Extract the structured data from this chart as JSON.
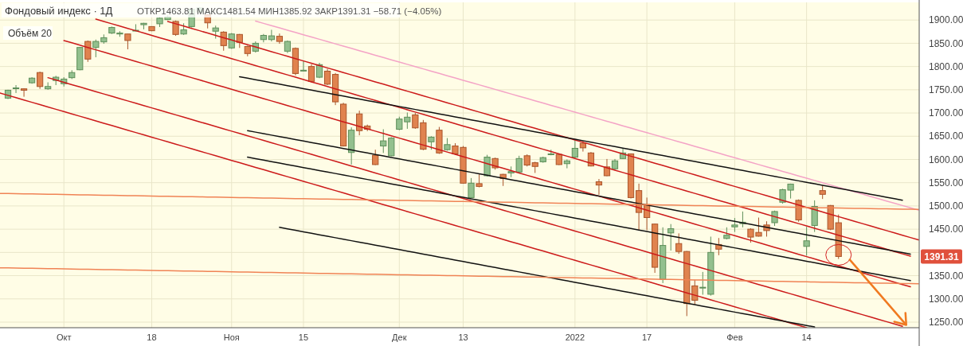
{
  "chart_data": {
    "type": "candlestick",
    "title": "Фондовый индекс · 1Д",
    "subtitle": "ОТКР1463.81 МАКС1481.54 МИН1385.92 ЗАКР1391.31 −58.71 (−4.05%)",
    "annotations": [
      "Объём 20",
      "1391.31"
    ],
    "categories": [
      null,
      null,
      null,
      null,
      null,
      null,
      null,
      null,
      "Окт",
      null,
      null,
      null,
      null,
      null,
      null,
      null,
      null,
      null,
      null,
      "18",
      null,
      null,
      null,
      null,
      null,
      null,
      null,
      null,
      null,
      "Ноя",
      null,
      null,
      null,
      null,
      null,
      null,
      null,
      null,
      "15",
      null,
      null,
      null,
      null,
      null,
      null,
      null,
      null,
      null,
      null,
      null,
      "Дек",
      null,
      null,
      null,
      null,
      null,
      null,
      null,
      "13",
      null,
      null,
      null,
      null,
      null,
      null,
      null,
      null,
      null,
      null,
      null,
      null,
      null,
      "2022",
      null,
      null,
      null,
      null,
      null,
      null,
      null,
      null,
      "17",
      null,
      null,
      null,
      null,
      null,
      null,
      null,
      null,
      null,
      null,
      "Фев",
      null,
      null,
      null,
      null,
      null,
      null,
      null,
      null,
      "14",
      null,
      null,
      null,
      null,
      null,
      null,
      null,
      null,
      null,
      null,
      null,
      null,
      null,
      null
    ],
    "ohlc": [
      null,
      [
        1732,
        1750,
        1730,
        1749
      ],
      [
        1754,
        1760,
        1743,
        1754
      ],
      [
        1752,
        1753,
        1735,
        1749
      ],
      [
        1765,
        1777,
        1763,
        1775
      ],
      [
        1787,
        1789,
        1752,
        1757
      ],
      [
        1752,
        1766,
        1750,
        1757
      ],
      [
        1770,
        1780,
        1760,
        1777
      ],
      [
        1763,
        1777,
        1757,
        1773
      ],
      [
        1776,
        1792,
        1773,
        1787
      ],
      [
        1793,
        1842,
        1792,
        1841
      ],
      [
        1854,
        1856,
        1810,
        1816
      ],
      [
        1841,
        1858,
        1820,
        1854
      ],
      [
        1853,
        1869,
        1849,
        1862
      ],
      [
        1872,
        1886,
        1870,
        1884
      ],
      [
        1870,
        1876,
        1864,
        1872
      ],
      [
        1870,
        1870,
        1837,
        1856
      ],
      [
        1877,
        1891,
        1876,
        1878
      ],
      [
        1890,
        1894,
        1880,
        1893
      ],
      [
        1886,
        1886,
        1876,
        1877
      ],
      [
        1892,
        1906,
        1885,
        1904
      ],
      [
        1901,
        1910,
        1900,
        1907
      ],
      [
        1897,
        1899,
        1866,
        1869
      ],
      [
        1870,
        1893,
        1868,
        1879
      ],
      [
        1886,
        1925,
        1884,
        1923
      ],
      [
        1917,
        1928,
        1915,
        1926
      ],
      [
        1911,
        1913,
        1882,
        1894
      ],
      [
        1876,
        1888,
        1860,
        1883
      ],
      [
        1874,
        1876,
        1834,
        1845
      ],
      [
        1840,
        1872,
        1838,
        1870
      ],
      [
        1869,
        1870,
        1840,
        1852
      ],
      [
        1843,
        1845,
        1822,
        1828
      ],
      [
        1833,
        1854,
        1830,
        1850
      ],
      [
        1858,
        1870,
        1852,
        1867
      ],
      [
        1858,
        1879,
        1854,
        1866
      ],
      [
        1865,
        1871,
        1849,
        1854
      ],
      [
        1833,
        1856,
        1829,
        1854
      ],
      [
        1839,
        1841,
        1781,
        1785
      ],
      [
        1792,
        1813,
        1790,
        1792
      ],
      [
        1800,
        1805,
        1766,
        1768
      ],
      [
        1777,
        1808,
        1775,
        1804
      ],
      [
        1790,
        1795,
        1760,
        1762
      ],
      [
        1783,
        1786,
        1717,
        1724
      ],
      [
        1719,
        1722,
        1628,
        1629
      ],
      [
        1615,
        1669,
        1589,
        1663
      ],
      [
        1698,
        1705,
        1652,
        1662
      ],
      [
        1672,
        1675,
        1661,
        1665
      ],
      [
        1609,
        1621,
        1588,
        1589
      ],
      [
        1629,
        1665,
        1614,
        1640
      ],
      [
        1608,
        1648,
        1607,
        1646
      ],
      [
        1665,
        1692,
        1663,
        1687
      ],
      [
        1681,
        1701,
        1666,
        1691
      ],
      [
        1696,
        1700,
        1666,
        1668
      ],
      [
        1679,
        1685,
        1620,
        1622
      ],
      [
        1638,
        1650,
        1621,
        1648
      ],
      [
        1663,
        1670,
        1612,
        1614
      ],
      [
        1621,
        1646,
        1619,
        1632
      ],
      [
        1629,
        1635,
        1610,
        1612
      ],
      [
        1626,
        1629,
        1548,
        1549
      ],
      [
        1518,
        1560,
        1517,
        1549
      ],
      [
        1548,
        1568,
        1540,
        1542
      ],
      [
        1565,
        1610,
        1563,
        1605
      ],
      [
        1602,
        1604,
        1578,
        1582
      ],
      [
        1568,
        1569,
        1543,
        1559
      ],
      [
        1571,
        1585,
        1562,
        1574
      ],
      [
        1573,
        1608,
        1572,
        1602
      ],
      [
        1608,
        1611,
        1585,
        1588
      ],
      [
        1593,
        1595,
        1571,
        1585
      ],
      [
        1595,
        1606,
        1593,
        1604
      ],
      [
        1612,
        1621,
        1609,
        1612
      ],
      [
        1611,
        1613,
        1588,
        1589
      ],
      [
        1591,
        1600,
        1581,
        1597
      ],
      [
        1605,
        1642,
        1602,
        1624
      ],
      [
        1635,
        1640,
        1617,
        1625
      ],
      [
        1614,
        1616,
        1585,
        1586
      ],
      [
        1552,
        1558,
        1524,
        1545
      ],
      [
        1584,
        1601,
        1564,
        1565
      ],
      [
        1580,
        1601,
        1578,
        1597
      ],
      [
        1602,
        1624,
        1601,
        1614
      ],
      [
        1612,
        1613,
        1516,
        1518
      ],
      [
        1533,
        1548,
        1447,
        1486
      ],
      [
        1503,
        1518,
        1448,
        1475
      ],
      [
        1461,
        1462,
        1356,
        1368
      ],
      [
        1342,
        1454,
        1334,
        1415
      ],
      [
        1442,
        1461,
        1404,
        1451
      ],
      [
        1419,
        1441,
        1397,
        1402
      ],
      [
        1402,
        1403,
        1263,
        1290
      ],
      [
        1328,
        1341,
        1288,
        1297
      ],
      [
        1324,
        1358,
        1309,
        1325
      ],
      [
        1310,
        1434,
        1307,
        1400
      ],
      [
        1417,
        1431,
        1394,
        1407
      ],
      [
        1430,
        1454,
        1428,
        1437
      ],
      [
        1455,
        1474,
        1444,
        1459
      ],
      [
        1462,
        1488,
        1454,
        1465
      ],
      [
        1450,
        1452,
        1421,
        1433
      ],
      [
        1443,
        1475,
        1434,
        1435
      ],
      [
        1459,
        1467,
        1434,
        1447
      ],
      [
        1464,
        1490,
        1457,
        1488
      ],
      [
        1508,
        1537,
        1505,
        1535
      ],
      [
        1534,
        1548,
        1516,
        1547
      ],
      [
        1512,
        1514,
        1466,
        1470
      ],
      [
        1413,
        1455,
        1393,
        1425
      ],
      [
        1458,
        1512,
        1444,
        1499
      ],
      [
        1533,
        1544,
        1515,
        1525
      ],
      [
        1501,
        1502,
        1448,
        1450
      ],
      [
        1463.81,
        1481.54,
        1385.92,
        1391.31
      ],
      null,
      null,
      null,
      null,
      null,
      null,
      null,
      null,
      null,
      null
    ],
    "series": [
      {
        "type": "line",
        "color": "#f4a3c6",
        "values": [
          null,
          null,
          null,
          null,
          null,
          null,
          null,
          null,
          null,
          null,
          null,
          null,
          null,
          null,
          null,
          null,
          null,
          null,
          null,
          null,
          null,
          null,
          null,
          null,
          null,
          null,
          null,
          null,
          null,
          null,
          null,
          null,
          1897.8,
          1892.9,
          1888,
          1883.1,
          1878.2,
          1873.3,
          1868.4,
          1863.5,
          1858.6,
          1853.7,
          1848.8,
          1843.9,
          1839,
          1834.1,
          1829.2,
          1824.3,
          1819.4,
          1814.5,
          1809.6,
          1804.7,
          1799.8,
          1794.9,
          1790,
          1785.1,
          1780.2,
          1775.3,
          1770.4,
          1765.5,
          1760.6,
          1755.7,
          1750.8,
          1745.9,
          1741,
          1736.1,
          1731.2,
          1726.3,
          1721.4,
          1716.5,
          1711.6,
          1706.7,
          1701.8,
          1696.9,
          1692,
          1687.1,
          1682.2,
          1677.3,
          1672.4,
          1667.5,
          1662.6,
          1657.7,
          1652.8,
          1647.9,
          1643,
          1638.1,
          1633.2,
          1628.3,
          1623.4,
          1618.5,
          1613.6,
          1608.7,
          1603.8,
          1598.9,
          1594,
          1589.1,
          1584.2,
          1579.3,
          1574.4,
          1569.5,
          1564.6,
          1559.7,
          1554.8,
          1549.9,
          1545,
          1540.1,
          1535.2,
          1530.3,
          1525.4,
          1520.5,
          1515.6,
          1510.7,
          1505.8,
          1500.9,
          1496,
          1491.1
        ]
      },
      {
        "type": "line",
        "color": "#cc1a1a",
        "values": [
          null,
          null,
          null,
          null,
          null,
          null,
          null,
          null,
          null,
          null,
          null,
          null,
          null,
          null,
          null,
          null,
          null,
          null,
          null,
          null,
          null,
          1897,
          1892,
          1887,
          1882,
          1877,
          1872,
          1867,
          1862,
          1857,
          1852,
          1847,
          1842,
          1837,
          1832,
          1827,
          1822,
          1817,
          1812,
          1807,
          1802,
          1797,
          1792,
          1787,
          1782,
          1777,
          1772,
          1767,
          1762,
          1757,
          1752,
          1747,
          1742,
          1737,
          1732,
          1727,
          1722,
          1717,
          1712,
          1707,
          1702,
          1697,
          1692,
          1687,
          1682,
          1677,
          1672,
          1667,
          1662,
          1657,
          1652,
          1647,
          1642,
          1637,
          1632,
          1627,
          1622,
          1617,
          1612,
          1607,
          1602,
          1597,
          1592,
          1587,
          1582,
          1577,
          1572,
          1567,
          1562,
          1557,
          1552,
          1547,
          1542,
          1537,
          1532,
          1527,
          1522,
          1517,
          1512,
          1507,
          1502,
          1497,
          1492,
          1487,
          1482,
          1477,
          1472,
          1467,
          1462,
          1457,
          1452,
          1447,
          1442,
          1437,
          1432,
          1427
        ]
      },
      {
        "type": "line",
        "color": "#cc1a1a",
        "values": [
          null,
          null,
          null,
          null,
          null,
          null,
          null,
          null,
          null,
          null,
          null,
          null,
          1902,
          1897,
          1892,
          1887,
          1882,
          1877,
          1872,
          1867,
          1862,
          1857,
          1852,
          1847,
          1842,
          1837,
          1832,
          1827,
          1822,
          1817,
          1812,
          1807,
          1802,
          1797,
          1792,
          1787,
          1782,
          1777,
          1772,
          1767,
          1762,
          1757,
          1752,
          1747,
          1742,
          1737,
          1732,
          1727,
          1722,
          1717,
          1712,
          1707,
          1702,
          1697,
          1692,
          1687,
          1682,
          1677,
          1672,
          1667,
          1662,
          1657,
          1652,
          1647,
          1642,
          1637,
          1632,
          1627,
          1622,
          1617,
          1612,
          1607,
          1602,
          1597,
          1592,
          1587,
          1582,
          1577,
          1572,
          1567,
          1562,
          1557,
          1552,
          1547,
          1542,
          1537,
          1532,
          1527,
          1522,
          1517,
          1512,
          1507,
          1502,
          1497,
          1492,
          1487,
          1482,
          1477,
          1472,
          1467,
          1462,
          1457,
          1452,
          1447,
          1442,
          1437,
          1432,
          1427,
          1422,
          1417,
          1412,
          1407,
          1402,
          1397,
          1392,
          null
        ]
      },
      {
        "type": "line",
        "color": "#cc1a1a",
        "values": [
          null,
          null,
          null,
          null,
          null,
          null,
          null,
          null,
          1856,
          1851,
          1846,
          1841,
          1836,
          1831,
          1826,
          1821,
          1816,
          1811,
          1806,
          1801,
          1796,
          1791,
          1786,
          1781,
          1776,
          1771,
          1766,
          1761,
          1756,
          1751,
          1746,
          1741,
          1736,
          1731,
          1726,
          1721,
          1716,
          1711,
          1706,
          1701,
          1696,
          1691,
          1686,
          1681,
          1676,
          1671,
          1666,
          1661,
          1656,
          1651,
          1646,
          1641,
          1636,
          1631,
          1626,
          1621,
          1616,
          1611,
          1606,
          1601,
          1596,
          1591,
          1586,
          1581,
          1576,
          1571,
          1566,
          1561,
          1556,
          1551,
          1546,
          1541,
          1536,
          1531,
          1526,
          1521,
          1516,
          1511,
          1506,
          1501,
          1496,
          1491,
          1486,
          1481,
          1476,
          1471,
          1466,
          1461,
          1456,
          1451,
          1446,
          1441,
          1436,
          1431,
          1426,
          1421,
          1416,
          1411,
          1406,
          1401,
          1396,
          1391,
          1386,
          1381,
          1376,
          1371,
          1366,
          1361,
          1356,
          1351,
          1346,
          1341,
          1336,
          1331,
          1326,
          null
        ]
      },
      {
        "type": "line",
        "color": "#cc1a1a",
        "values": [
          null,
          null,
          null,
          null,
          null,
          null,
          1776,
          1771,
          1766,
          1761,
          1756,
          1751,
          1746,
          1741,
          1736,
          1731,
          1726,
          1721,
          1716,
          1711,
          1706,
          1701,
          1696,
          1691,
          1686,
          1681,
          1676,
          1671,
          1666,
          1661,
          1656,
          1651,
          1646,
          1641,
          1636,
          1631,
          1626,
          1621,
          1616,
          1611,
          1606,
          1601,
          1596,
          1591,
          1586,
          1581,
          1576,
          1571,
          1566,
          1561,
          1556,
          1551,
          1546,
          1541,
          1536,
          1531,
          1526,
          1521,
          1516,
          1511,
          1506,
          1501,
          1496,
          1491,
          1486,
          1481,
          1476,
          1471,
          1466,
          1461,
          1456,
          1451,
          1446,
          1441,
          1436,
          1431,
          1426,
          1421,
          1416,
          1411,
          1406,
          1401,
          1396,
          1391,
          1386,
          1381,
          1376,
          1371,
          1366,
          1361,
          1356,
          1351,
          1346,
          1341,
          1336,
          1331,
          1326,
          1321,
          1316,
          1311,
          1306,
          1301,
          1296,
          1291,
          1286,
          1281,
          1276,
          1271,
          1266,
          1261,
          1256,
          1251,
          1246,
          1241,
          null,
          null
        ]
      },
      {
        "type": "line",
        "color": "#cc1a1a",
        "values": [
          1743,
          1738,
          1733,
          1728,
          1723,
          1718,
          1713,
          1708,
          1703,
          1698,
          1693,
          1688,
          1683,
          1678,
          1673,
          1668,
          1663,
          1658,
          1653,
          1648,
          1643,
          1638,
          1633,
          1628,
          1623,
          1618,
          1613,
          1608,
          1603,
          1598,
          1593,
          1588,
          1583,
          1578,
          1573,
          1568,
          1563,
          1558,
          1553,
          1548,
          1543,
          1538,
          1533,
          1528,
          1523,
          1518,
          1513,
          1508,
          1503,
          1498,
          1493,
          1488,
          1483,
          1478,
          1473,
          1468,
          1463,
          1458,
          1453,
          1448,
          1443,
          1438,
          1433,
          1428,
          1423,
          1418,
          1413,
          1408,
          1403,
          1398,
          1393,
          1388,
          1383,
          1378,
          1373,
          1368,
          1363,
          1358,
          1353,
          1348,
          1343,
          1338,
          1333,
          1328,
          1323,
          1318,
          1313,
          1308,
          1303,
          1298,
          1293,
          1288,
          1283,
          1278,
          1273,
          1268,
          1263,
          1258,
          1253,
          1248,
          1243,
          1238,
          null,
          null,
          null,
          null,
          null,
          null,
          null,
          null,
          null,
          null,
          null,
          null,
          null,
          null
        ]
      },
      {
        "type": "line",
        "color": "#111111",
        "values": [
          null,
          null,
          null,
          null,
          null,
          null,
          null,
          null,
          null,
          null,
          null,
          null,
          null,
          null,
          null,
          null,
          null,
          null,
          null,
          null,
          null,
          null,
          null,
          null,
          null,
          null,
          null,
          null,
          null,
          null,
          1778,
          1774.8,
          1771.6,
          1768.4,
          1765.2,
          1762,
          1758.8,
          1755.6,
          1752.4,
          1749.2,
          1746,
          1742.8,
          1739.6,
          1736.4,
          1733.2,
          1730,
          1726.8,
          1723.6,
          1720.4,
          1717.2,
          1714,
          1710.8,
          1707.6,
          1704.4,
          1701.2,
          1698,
          1694.8,
          1691.6,
          1688.4,
          1685.2,
          1682,
          1678.8,
          1675.6,
          1672.4,
          1669.2,
          1666,
          1662.8,
          1659.6,
          1656.4,
          1653.2,
          1650,
          1646.8,
          1643.6,
          1640.4,
          1637.2,
          1634,
          1630.8,
          1627.6,
          1624.4,
          1621.2,
          1618,
          1614.8,
          1611.6,
          1608.4,
          1605.2,
          1602,
          1598.8,
          1595.6,
          1592.4,
          1589.2,
          1586,
          1582.8,
          1579.6,
          1576.4,
          1573.2,
          1570,
          1566.8,
          1563.6,
          1560.4,
          1557.2,
          1554,
          1550.8,
          1547.6,
          1544.4,
          1541.2,
          1538,
          1534.8,
          1531.6,
          1528.4,
          1525.2,
          1522,
          1518.8,
          1515.6,
          1512.4,
          null,
          null
        ]
      },
      {
        "type": "line",
        "color": "#111111",
        "values": [
          null,
          null,
          null,
          null,
          null,
          null,
          null,
          null,
          null,
          null,
          null,
          null,
          null,
          null,
          null,
          null,
          null,
          null,
          null,
          null,
          null,
          null,
          null,
          null,
          null,
          null,
          null,
          null,
          null,
          null,
          null,
          1662,
          1658.8,
          1655.6,
          1652.4,
          1649.2,
          1646,
          1642.8,
          1639.6,
          1636.4,
          1633.2,
          1630,
          1626.8,
          1623.6,
          1620.4,
          1617.2,
          1614,
          1610.8,
          1607.6,
          1604.4,
          1601.2,
          1598,
          1594.8,
          1591.6,
          1588.4,
          1585.2,
          1582,
          1578.8,
          1575.6,
          1572.4,
          1569.2,
          1566,
          1562.8,
          1559.6,
          1556.4,
          1553.2,
          1550,
          1546.8,
          1543.6,
          1540.4,
          1537.2,
          1534,
          1530.8,
          1527.6,
          1524.4,
          1521.2,
          1518,
          1514.8,
          1511.6,
          1508.4,
          1505.2,
          1502,
          1498.8,
          1495.6,
          1492.4,
          1489.2,
          1486,
          1482.8,
          1479.6,
          1476.4,
          1473.2,
          1470,
          1466.8,
          1463.6,
          1460.4,
          1457.2,
          1454,
          1450.8,
          1447.6,
          1444.4,
          1441.2,
          1438,
          1434.8,
          1431.6,
          1428.4,
          1425.2,
          1422,
          1418.8,
          1415.6,
          1412.4,
          1409.2,
          1406,
          1402.8,
          1399.6,
          1396.4,
          null
        ]
      },
      {
        "type": "line",
        "color": "#111111",
        "values": [
          null,
          null,
          null,
          null,
          null,
          null,
          null,
          null,
          null,
          null,
          null,
          null,
          null,
          null,
          null,
          null,
          null,
          null,
          null,
          null,
          null,
          null,
          null,
          null,
          null,
          null,
          null,
          null,
          null,
          null,
          null,
          1605,
          1601.8,
          1598.6,
          1595.4,
          1592.2,
          1589,
          1585.8,
          1582.6,
          1579.4,
          1576.2,
          1573,
          1569.8,
          1566.6,
          1563.4,
          1560.2,
          1557,
          1553.8,
          1550.6,
          1547.4,
          1544.2,
          1541,
          1537.8,
          1534.6,
          1531.4,
          1528.2,
          1525,
          1521.8,
          1518.6,
          1515.4,
          1512.2,
          1509,
          1505.8,
          1502.6,
          1499.4,
          1496.2,
          1493,
          1489.8,
          1486.6,
          1483.4,
          1480.2,
          1477,
          1473.8,
          1470.6,
          1467.4,
          1464.2,
          1461,
          1457.8,
          1454.6,
          1451.4,
          1448.2,
          1445,
          1441.8,
          1438.6,
          1435.4,
          1432.2,
          1429,
          1425.8,
          1422.6,
          1419.4,
          1416.2,
          1413,
          1409.8,
          1406.6,
          1403.4,
          1400.2,
          1397,
          1393.8,
          1390.6,
          1387.4,
          1384.2,
          1381,
          1377.8,
          1374.6,
          1371.4,
          1368.2,
          1365,
          1361.8,
          1358.6,
          1355.4,
          1352.2,
          1349,
          1345.8,
          1342.6,
          1339.4,
          null
        ]
      },
      {
        "type": "line",
        "color": "#111111",
        "values": [
          null,
          null,
          null,
          null,
          null,
          null,
          null,
          null,
          null,
          null,
          null,
          null,
          null,
          null,
          null,
          null,
          null,
          null,
          null,
          null,
          null,
          null,
          null,
          null,
          null,
          null,
          null,
          null,
          null,
          null,
          null,
          null,
          null,
          null,
          null,
          1454,
          1450.8,
          1447.6,
          1444.4,
          1441.2,
          1438,
          1434.8,
          1431.6,
          1428.4,
          1425.2,
          1422,
          1418.8,
          1415.6,
          1412.4,
          1409.2,
          1406,
          1402.8,
          1399.6,
          1396.4,
          1393.2,
          1390,
          1386.8,
          1383.6,
          1380.4,
          1377.2,
          1374,
          1370.8,
          1367.6,
          1364.4,
          1361.2,
          1358,
          1354.8,
          1351.6,
          1348.4,
          1345.2,
          1342,
          1338.8,
          1335.6,
          1332.4,
          1329.2,
          1326,
          1322.8,
          1319.6,
          1316.4,
          1313.2,
          1310,
          1306.8,
          1303.6,
          1300.4,
          1297.2,
          1294,
          1290.8,
          1287.6,
          1284.4,
          1281.2,
          1278,
          1274.8,
          1271.6,
          1268.4,
          1265.2,
          1262,
          1258.8,
          1255.6,
          1252.4,
          1249.2,
          1246,
          1242.8,
          1239.6,
          null,
          null,
          null,
          null,
          null,
          null,
          null,
          null,
          null,
          null,
          null,
          null,
          null
        ]
      },
      {
        "type": "line",
        "color": "#f08355",
        "values": [
          1527,
          1526.7,
          1526.4,
          1526.1,
          1525.8,
          1525.5,
          1525.2,
          1524.9,
          1524.6,
          1524.3,
          1524,
          1523.7,
          1523.4,
          1523.1,
          1522.8,
          1522.5,
          1522.2,
          1521.9,
          1521.6,
          1521.3,
          1521,
          1520.7,
          1520.4,
          1520.1,
          1519.8,
          1519.5,
          1519.2,
          1518.9,
          1518.6,
          1518.3,
          1518,
          1517.7,
          1517.4,
          1517.1,
          1516.8,
          1516.5,
          1516.2,
          1515.9,
          1515.6,
          1515.3,
          1515,
          1514.7,
          1514.4,
          1514.1,
          1513.8,
          1513.5,
          1513.2,
          1512.9,
          1512.6,
          1512.3,
          1512,
          1511.7,
          1511.4,
          1511.1,
          1510.8,
          1510.5,
          1510.2,
          1509.9,
          1509.6,
          1509.3,
          1509,
          1508.7,
          1508.4,
          1508.1,
          1507.8,
          1507.5,
          1507.2,
          1506.9,
          1506.6,
          1506.3,
          1506,
          1505.7,
          1505.4,
          1505.1,
          1504.8,
          1504.5,
          1504.2,
          1503.9,
          1503.6,
          1503.3,
          1503,
          1502.7,
          1502.4,
          1502.1,
          1501.8,
          1501.5,
          1501.2,
          1500.9,
          1500.6,
          1500.3,
          1500,
          1499.7,
          1499.4,
          1499.1,
          1498.8,
          1498.5,
          1498.2,
          1497.9,
          1497.6,
          1497.3,
          1497,
          1496.7,
          1496.4,
          1496.1,
          1495.8,
          1495.5,
          1495.2,
          1494.9,
          1494.6,
          1494.3,
          1494,
          1493.7,
          1493.4,
          1493.1,
          1492.8,
          1492.5
        ]
      },
      {
        "type": "line",
        "color": "#f08355",
        "values": [
          1367,
          1366.7,
          1366.4,
          1366.1,
          1365.8,
          1365.5,
          1365.2,
          1364.9,
          1364.6,
          1364.3,
          1364,
          1363.7,
          1363.4,
          1363.1,
          1362.8,
          1362.5,
          1362.2,
          1361.9,
          1361.6,
          1361.3,
          1361,
          1360.7,
          1360.4,
          1360.1,
          1359.8,
          1359.5,
          1359.2,
          1358.9,
          1358.6,
          1358.3,
          1358,
          1357.7,
          1357.4,
          1357.1,
          1356.8,
          1356.5,
          1356.2,
          1355.9,
          1355.6,
          1355.3,
          1355,
          1354.7,
          1354.4,
          1354.1,
          1353.8,
          1353.5,
          1353.2,
          1352.9,
          1352.6,
          1352.3,
          1352,
          1351.7,
          1351.4,
          1351.1,
          1350.8,
          1350.5,
          1350.2,
          1349.9,
          1349.6,
          1349.3,
          1349,
          1348.7,
          1348.4,
          1348.1,
          1347.8,
          1347.5,
          1347.2,
          1346.9,
          1346.6,
          1346.3,
          1346,
          1345.7,
          1345.4,
          1345.1,
          1344.8,
          1344.5,
          1344.2,
          1343.9,
          1343.6,
          1343.3,
          1343,
          1342.7,
          1342.4,
          1342.1,
          1341.8,
          1341.5,
          1341.2,
          1340.9,
          1340.6,
          1340.3,
          1340,
          1339.7,
          1339.4,
          1339.1,
          1338.8,
          1338.5,
          1338.2,
          1337.9,
          1337.6,
          1337.3,
          1337,
          1336.7,
          1336.4,
          1336.1,
          1335.8,
          1335.5,
          1335.2,
          1334.9,
          1334.6,
          1334.3,
          1334,
          1333.7,
          1333.4,
          1333.1,
          1332.8,
          1332.5
        ]
      }
    ],
    "ylim": [
      1238,
      1938
    ],
    "yticks": [
      {
        "value": 1250,
        "label": "1250.00"
      },
      {
        "value": 1300,
        "label": "1300.00"
      },
      {
        "value": 1350,
        "label": "1350.00"
      },
      {
        "value": 1400,
        "label": null
      },
      {
        "value": 1450,
        "label": "1450.00"
      },
      {
        "value": 1500,
        "label": "1500.00"
      },
      {
        "value": 1550,
        "label": "1550.00"
      },
      {
        "value": 1600,
        "label": "1600.00"
      },
      {
        "value": 1650,
        "label": "1650.00"
      },
      {
        "value": 1700,
        "label": "1700.00"
      },
      {
        "value": 1750,
        "label": "1750.00"
      },
      {
        "value": 1800,
        "label": "1800.00"
      },
      {
        "value": 1850,
        "label": "1850.00"
      },
      {
        "value": 1900,
        "label": "1900.00"
      }
    ],
    "grid": true
  }
}
